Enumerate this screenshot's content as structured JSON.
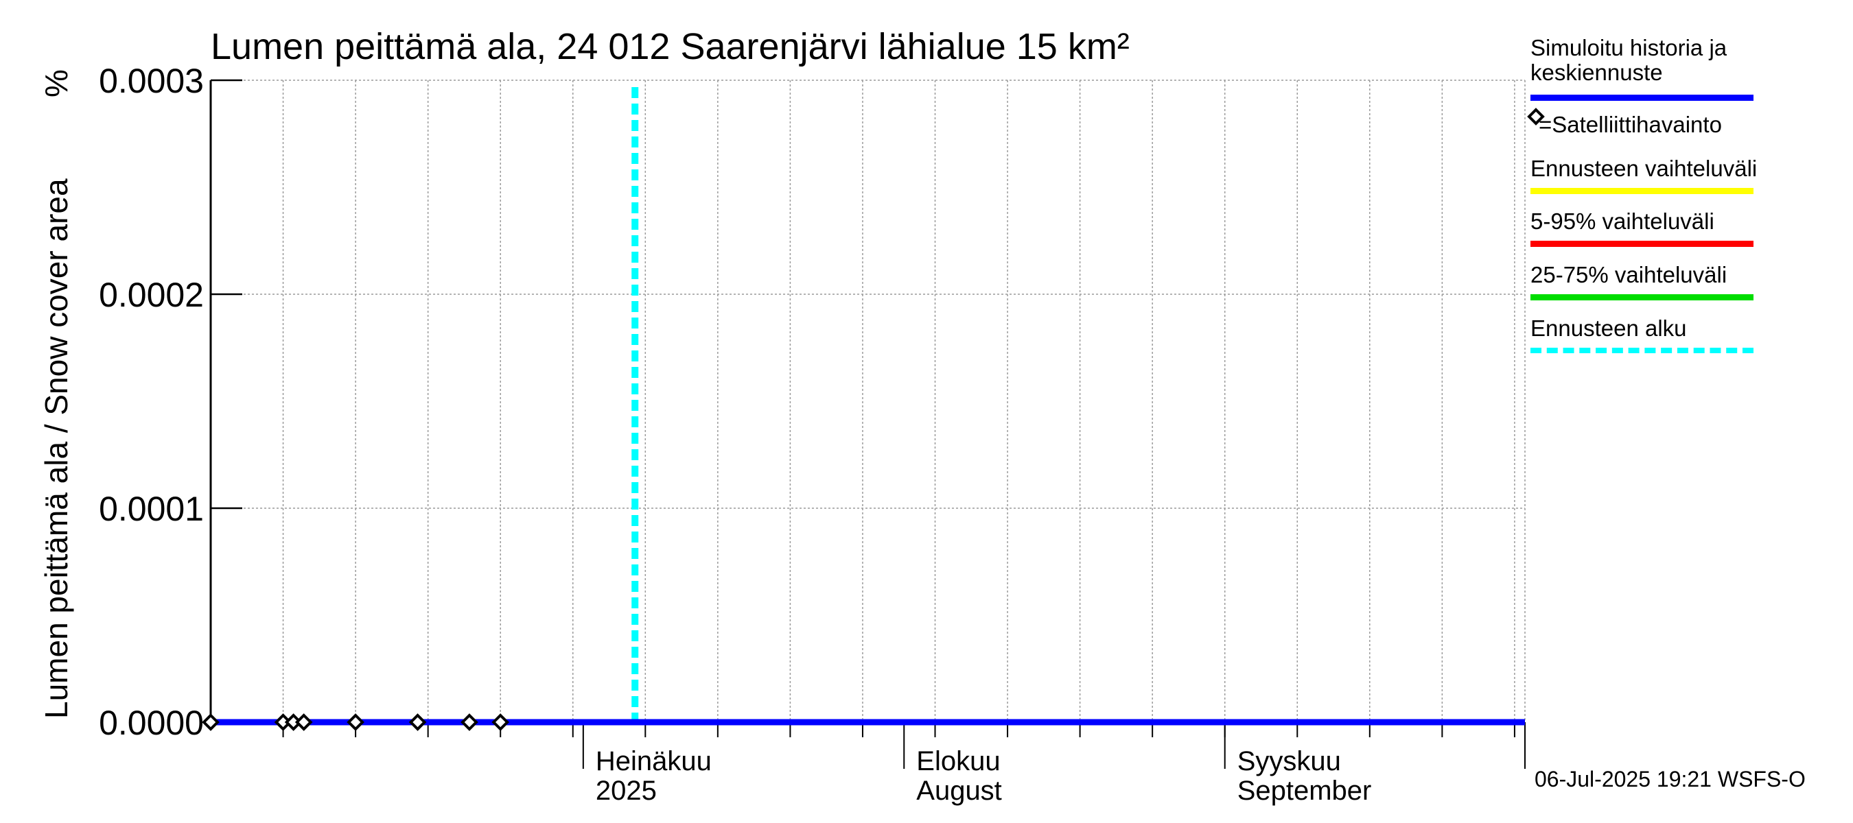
{
  "chart_data": {
    "type": "line",
    "title": "Lumen peittämä ala, 24 012 Saarenjärvi lähialue 15 km²",
    "ylabel": "Lumen peittämä ala / Snow cover area",
    "yunit": "%",
    "ylim": [
      0,
      0.0003
    ],
    "yticks": [
      "0.0000",
      "0.0001",
      "0.0002",
      "0.0003"
    ],
    "xlim": [
      "2025-05-26",
      "2025-09-30"
    ],
    "month_labels": [
      {
        "date": "2025-07-01",
        "line1": "Heinäkuu",
        "line2": "2025"
      },
      {
        "date": "2025-08-01",
        "line1": "Elokuu",
        "line2": "August"
      },
      {
        "date": "2025-09-01",
        "line1": "Syyskuu",
        "line2": "September"
      }
    ],
    "grid": true,
    "forecast_start": "2025-07-06",
    "series": [
      {
        "name": "Simuloitu historia ja keskiennuste",
        "color": "#0000ff",
        "x": [
          "2025-05-26",
          "2025-09-30"
        ],
        "y": [
          0,
          0
        ]
      }
    ],
    "observations": {
      "name": "=Satelliittihavainto",
      "x": [
        "2025-05-26",
        "2025-06-02",
        "2025-06-03",
        "2025-06-04",
        "2025-06-09",
        "2025-06-15",
        "2025-06-20",
        "2025-06-23"
      ],
      "y": [
        0,
        0,
        0,
        0,
        0,
        0,
        0,
        0
      ]
    }
  },
  "legend": [
    {
      "label": "Simuloitu historia ja keskiennuste",
      "color": "#0000ff",
      "style": "solid"
    },
    {
      "label": "=Satelliittihavainto",
      "color": "#000000",
      "style": "diamond"
    },
    {
      "label": "Ennusteen vaihteluväli",
      "color": "#ffff00",
      "style": "solid"
    },
    {
      "label": "5-95% vaihteluväli",
      "color": "#ff0000",
      "style": "solid"
    },
    {
      "label": "25-75% vaihteluväli",
      "color": "#00dd00",
      "style": "solid"
    },
    {
      "label": "Ennusteen alku",
      "color": "#00ffff",
      "style": "dashed"
    }
  ],
  "footer": "06-Jul-2025 19:21 WSFS-O"
}
